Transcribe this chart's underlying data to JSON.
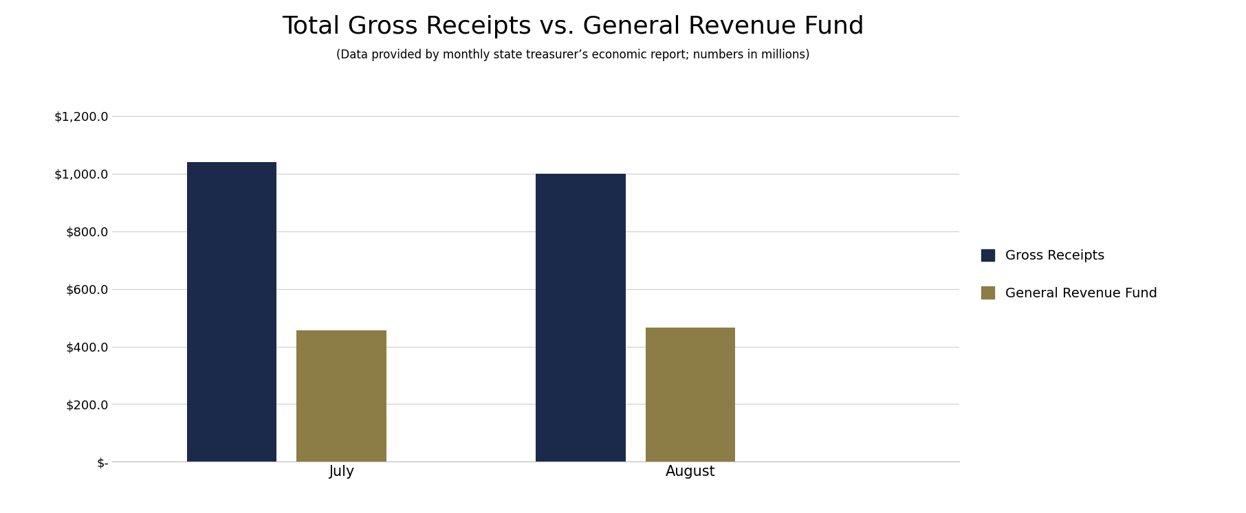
{
  "title": "Total Gross Receipts vs. General Revenue Fund",
  "subtitle": "(Data provided by monthly state treasurer’s economic report; numbers in millions)",
  "categories": [
    "July",
    "August"
  ],
  "gross_receipts": [
    1040,
    1000
  ],
  "general_revenue_fund": [
    455,
    465
  ],
  "gross_receipts_color": "#1B2A4A",
  "general_revenue_fund_color": "#8B7D45",
  "ylim": [
    0,
    1300
  ],
  "yticks": [
    0,
    200,
    400,
    600,
    800,
    1000,
    1200
  ],
  "ytick_labels": [
    "$-",
    "$200.0",
    "$400.0",
    "$600.0",
    "$800.0",
    "$1,000.0",
    "$1,200.0"
  ],
  "legend_labels": [
    "Gross Receipts",
    "General Revenue Fund"
  ],
  "bar_width": 0.18,
  "bar_gap": 0.04,
  "group_positions": [
    0.35,
    1.05
  ],
  "xlim": [
    0,
    1.7
  ],
  "xtick_positions": [
    0.46,
    1.16
  ],
  "background_color": "#ffffff",
  "title_fontsize": 26,
  "subtitle_fontsize": 12,
  "tick_fontsize": 13,
  "legend_fontsize": 14,
  "xlabel_fontsize": 15
}
